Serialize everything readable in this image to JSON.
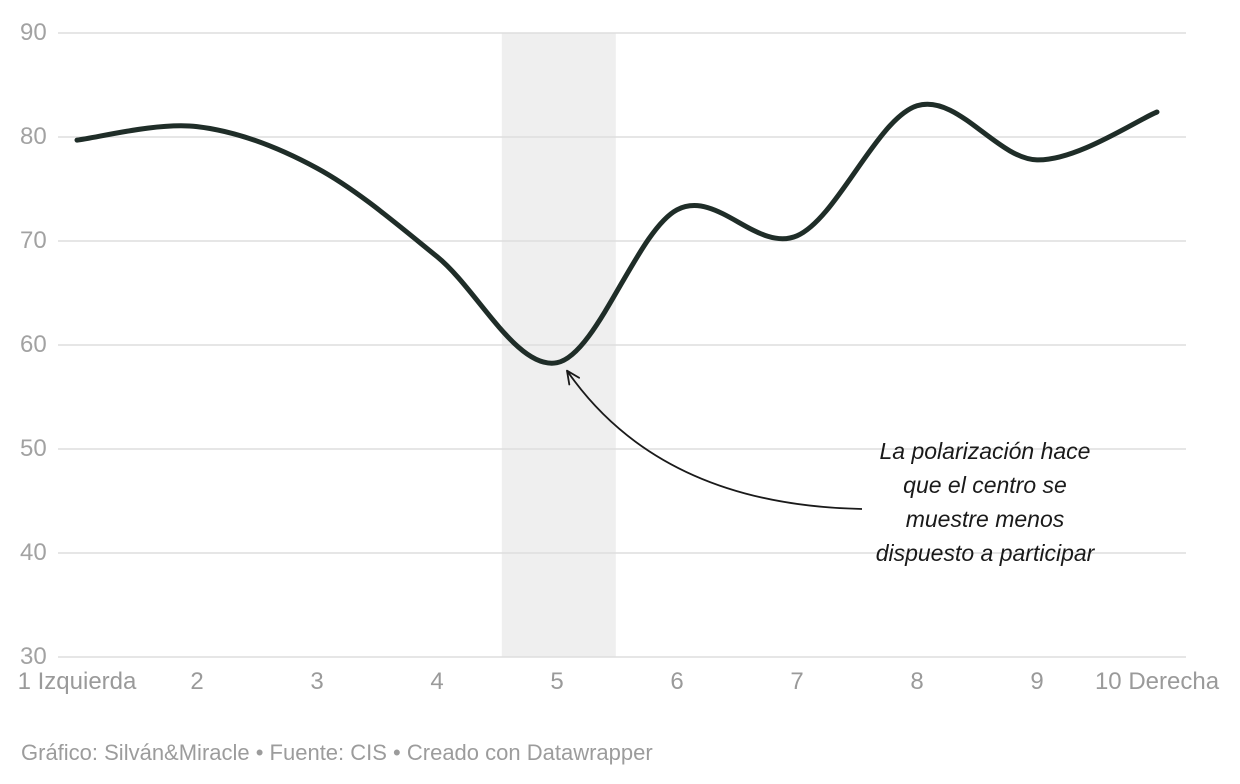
{
  "chart_data": {
    "type": "line",
    "x": [
      1,
      2,
      3,
      4,
      5,
      6,
      7,
      8,
      9,
      10
    ],
    "x_tick_labels": [
      "1 Izquierda",
      "2",
      "3",
      "4",
      "5",
      "6",
      "7",
      "8",
      "9",
      "10 Derecha"
    ],
    "values": [
      79.7,
      81,
      77,
      68.5,
      58.3,
      73,
      70.5,
      83,
      77.8,
      82.4
    ],
    "title": "",
    "xlabel": "",
    "ylabel": "",
    "ylim": [
      30,
      90
    ],
    "yticks": [
      90,
      80,
      70,
      60,
      50,
      40,
      30
    ],
    "grid": "horizontal-only",
    "legend": "none",
    "line_color": "#1f2d28",
    "grid_color": "#dedede",
    "highlight_band": {
      "from": 4.54,
      "to": 5.49,
      "color": "#efefef"
    },
    "annotation": {
      "lines": [
        "La polarización hace",
        "que el centro se",
        "muestre menos",
        "dispuesto a participar"
      ],
      "style": "italic",
      "arrow_target": {
        "x": 5,
        "y": 58.3
      }
    }
  },
  "axis": {
    "tick_label_color": "#a2a2a2"
  },
  "footer": {
    "text": "Gráfico: Silván&Miracle • Fuente: CIS • Creado con Datawrapper"
  },
  "colors": {
    "background": "#ffffff",
    "line": "#1f2d28",
    "gridline": "#dedede",
    "band": "#efefef",
    "annotation_text": "#1a1a1a",
    "arrow": "#1a1a1a",
    "footer_text": "#9c9c9c"
  }
}
